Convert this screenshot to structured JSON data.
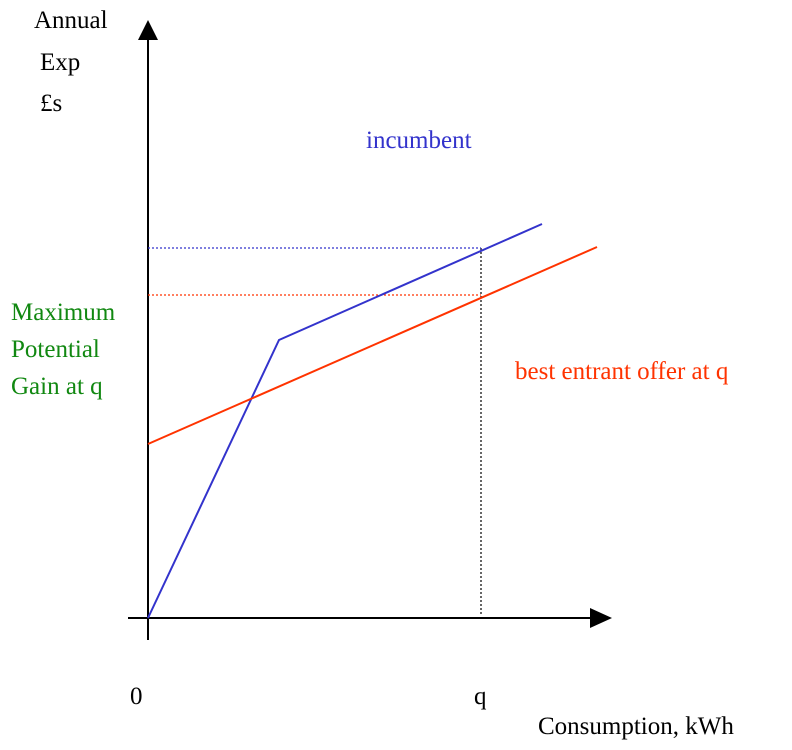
{
  "axes": {
    "y_label_lines": [
      "Annual",
      "Exp",
      "£s"
    ],
    "x_label": "Consumption, kWh",
    "origin_label": "0",
    "q_label": "q"
  },
  "labels": {
    "incumbent": "incumbent",
    "entrant": "best entrant offer at q",
    "gain_lines": [
      "Maximum",
      "Potential",
      "Gain at q"
    ]
  },
  "colors": {
    "axis": "#000000",
    "incumbent": "#3333cc",
    "entrant": "#ff3300",
    "gain_text": "#118811",
    "text": "#000000"
  }
}
